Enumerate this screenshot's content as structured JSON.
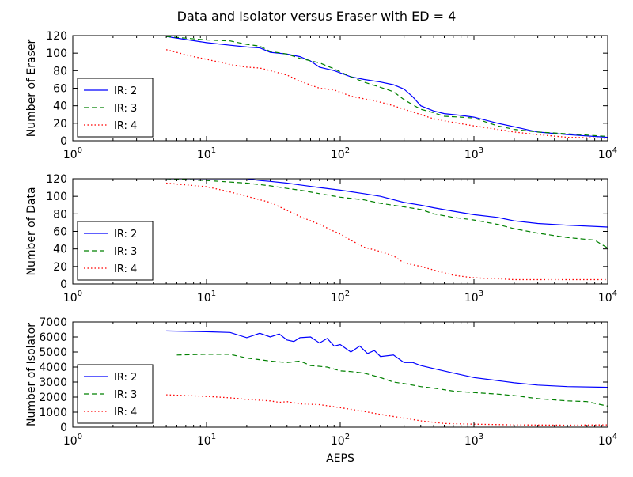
{
  "figure": {
    "title": "Data and Isolator versus Eraser with ED = 4"
  },
  "chart_data": [
    {
      "type": "line",
      "title": "Data and Isolator versus Eraser with ED = 4",
      "xlabel": "",
      "ylabel": "Number of Eraser",
      "xscale": "log",
      "xlim": [
        1,
        10000
      ],
      "ylim": [
        0,
        120
      ],
      "x_ticks": [
        {
          "value": 1,
          "base": "10",
          "exp": "0"
        },
        {
          "value": 10,
          "base": "10",
          "exp": "1"
        },
        {
          "value": 100,
          "base": "10",
          "exp": "2"
        },
        {
          "value": 1000,
          "base": "10",
          "exp": "3"
        },
        {
          "value": 10000,
          "base": "10",
          "exp": "4"
        }
      ],
      "y_ticks": [
        0,
        20,
        40,
        60,
        80,
        100,
        120
      ],
      "legend_position": "lower-left",
      "series": [
        {
          "name": "IR: 2",
          "color": "#0000ff",
          "dash": "solid",
          "points": [
            [
              5,
              119
            ],
            [
              10,
              112
            ],
            [
              15,
              109
            ],
            [
              20,
              107
            ],
            [
              25,
              106
            ],
            [
              30,
              101
            ],
            [
              40,
              99
            ],
            [
              50,
              96
            ],
            [
              60,
              91
            ],
            [
              70,
              84
            ],
            [
              90,
              80
            ],
            [
              120,
              73
            ],
            [
              150,
              70
            ],
            [
              200,
              67
            ],
            [
              250,
              64
            ],
            [
              300,
              59
            ],
            [
              350,
              50
            ],
            [
              400,
              40
            ],
            [
              500,
              34
            ],
            [
              600,
              31
            ],
            [
              800,
              29
            ],
            [
              1000,
              27
            ],
            [
              1500,
              20
            ],
            [
              2000,
              16
            ],
            [
              3000,
              10
            ],
            [
              5000,
              7
            ],
            [
              10000,
              4
            ]
          ]
        },
        {
          "name": "IR: 3",
          "color": "#008000",
          "dash": "dashed",
          "points": [
            [
              5,
              119
            ],
            [
              10,
              115
            ],
            [
              15,
              114
            ],
            [
              20,
              110
            ],
            [
              25,
              108
            ],
            [
              30,
              102
            ],
            [
              40,
              99
            ],
            [
              50,
              94
            ],
            [
              70,
              89
            ],
            [
              90,
              82
            ],
            [
              120,
              73
            ],
            [
              150,
              67
            ],
            [
              200,
              61
            ],
            [
              250,
              56
            ],
            [
              300,
              47
            ],
            [
              350,
              41
            ],
            [
              400,
              36
            ],
            [
              500,
              32
            ],
            [
              600,
              28
            ],
            [
              800,
              27
            ],
            [
              1000,
              26
            ],
            [
              1500,
              17
            ],
            [
              2000,
              13
            ],
            [
              3000,
              10
            ],
            [
              5000,
              8
            ],
            [
              10000,
              5
            ]
          ]
        },
        {
          "name": "IR: 4",
          "color": "#ff0000",
          "dash": "dotted",
          "points": [
            [
              5,
              104
            ],
            [
              8,
              96
            ],
            [
              10,
              93
            ],
            [
              15,
              87
            ],
            [
              20,
              84
            ],
            [
              25,
              83
            ],
            [
              30,
              80
            ],
            [
              40,
              75
            ],
            [
              50,
              68
            ],
            [
              70,
              60
            ],
            [
              90,
              58
            ],
            [
              120,
              51
            ],
            [
              150,
              48
            ],
            [
              200,
              44
            ],
            [
              250,
              40
            ],
            [
              300,
              36
            ],
            [
              400,
              30
            ],
            [
              500,
              25
            ],
            [
              700,
              21
            ],
            [
              1000,
              17
            ],
            [
              1500,
              13
            ],
            [
              2000,
              10
            ],
            [
              3000,
              7
            ],
            [
              5000,
              4
            ],
            [
              10000,
              3
            ]
          ]
        }
      ]
    },
    {
      "type": "line",
      "title": "",
      "xlabel": "",
      "ylabel": "Number of Data",
      "xscale": "log",
      "xlim": [
        1,
        10000
      ],
      "ylim": [
        0,
        120
      ],
      "x_ticks": [
        {
          "value": 1,
          "base": "10",
          "exp": "0"
        },
        {
          "value": 10,
          "base": "10",
          "exp": "1"
        },
        {
          "value": 100,
          "base": "10",
          "exp": "2"
        },
        {
          "value": 1000,
          "base": "10",
          "exp": "3"
        },
        {
          "value": 10000,
          "base": "10",
          "exp": "4"
        }
      ],
      "y_ticks": [
        0,
        20,
        40,
        60,
        80,
        100,
        120
      ],
      "legend_position": "lower-left",
      "series": [
        {
          "name": "IR: 2",
          "color": "#0000ff",
          "dash": "solid",
          "points": [
            [
              5,
              120
            ],
            [
              10,
              120
            ],
            [
              20,
              120
            ],
            [
              25,
              118
            ],
            [
              30,
              117
            ],
            [
              40,
              115
            ],
            [
              50,
              113
            ],
            [
              70,
              110
            ],
            [
              100,
              107
            ],
            [
              150,
              103
            ],
            [
              200,
              100
            ],
            [
              300,
              93
            ],
            [
              400,
              90
            ],
            [
              500,
              87
            ],
            [
              700,
              83
            ],
            [
              1000,
              79
            ],
            [
              1500,
              76
            ],
            [
              2000,
              72
            ],
            [
              3000,
              69
            ],
            [
              5000,
              67
            ],
            [
              10000,
              65
            ]
          ]
        },
        {
          "name": "IR: 3",
          "color": "#008000",
          "dash": "dashed",
          "points": [
            [
              5,
              120
            ],
            [
              10,
              118
            ],
            [
              20,
              115
            ],
            [
              30,
              112
            ],
            [
              40,
              109
            ],
            [
              50,
              107
            ],
            [
              70,
              103
            ],
            [
              100,
              99
            ],
            [
              150,
              96
            ],
            [
              200,
              92
            ],
            [
              300,
              88
            ],
            [
              400,
              85
            ],
            [
              500,
              80
            ],
            [
              700,
              76
            ],
            [
              1000,
              73
            ],
            [
              1500,
              68
            ],
            [
              2000,
              63
            ],
            [
              3000,
              58
            ],
            [
              5000,
              53
            ],
            [
              8000,
              50
            ],
            [
              10000,
              41
            ]
          ]
        },
        {
          "name": "IR: 4",
          "color": "#ff0000",
          "dash": "dotted",
          "points": [
            [
              5,
              115
            ],
            [
              10,
              111
            ],
            [
              15,
              105
            ],
            [
              20,
              100
            ],
            [
              30,
              93
            ],
            [
              40,
              84
            ],
            [
              50,
              77
            ],
            [
              70,
              68
            ],
            [
              90,
              60
            ],
            [
              100,
              57
            ],
            [
              120,
              50
            ],
            [
              150,
              42
            ],
            [
              200,
              37
            ],
            [
              250,
              32
            ],
            [
              300,
              24
            ],
            [
              400,
              20
            ],
            [
              500,
              16
            ],
            [
              700,
              10
            ],
            [
              1000,
              7
            ],
            [
              1500,
              6
            ],
            [
              2000,
              5
            ],
            [
              5000,
              5
            ],
            [
              10000,
              5
            ]
          ]
        }
      ]
    },
    {
      "type": "line",
      "title": "",
      "xlabel": "AEPS",
      "ylabel": "Number of Isolator",
      "xscale": "log",
      "xlim": [
        1,
        10000
      ],
      "ylim": [
        0,
        7000
      ],
      "x_ticks": [
        {
          "value": 1,
          "base": "10",
          "exp": "0"
        },
        {
          "value": 10,
          "base": "10",
          "exp": "1"
        },
        {
          "value": 100,
          "base": "10",
          "exp": "2"
        },
        {
          "value": 1000,
          "base": "10",
          "exp": "3"
        },
        {
          "value": 10000,
          "base": "10",
          "exp": "4"
        }
      ],
      "y_ticks": [
        0,
        1000,
        2000,
        3000,
        4000,
        5000,
        6000,
        7000
      ],
      "legend_position": "lower-left",
      "series": [
        {
          "name": "IR: 2",
          "color": "#0000ff",
          "dash": "solid",
          "points": [
            [
              5,
              6400
            ],
            [
              10,
              6350
            ],
            [
              15,
              6300
            ],
            [
              20,
              5950
            ],
            [
              25,
              6250
            ],
            [
              30,
              6000
            ],
            [
              35,
              6200
            ],
            [
              40,
              5800
            ],
            [
              45,
              5700
            ],
            [
              50,
              5950
            ],
            [
              60,
              6000
            ],
            [
              70,
              5600
            ],
            [
              80,
              5900
            ],
            [
              90,
              5400
            ],
            [
              100,
              5500
            ],
            [
              120,
              5000
            ],
            [
              140,
              5400
            ],
            [
              160,
              4900
            ],
            [
              180,
              5100
            ],
            [
              200,
              4700
            ],
            [
              250,
              4800
            ],
            [
              300,
              4300
            ],
            [
              350,
              4300
            ],
            [
              400,
              4100
            ],
            [
              500,
              3900
            ],
            [
              700,
              3600
            ],
            [
              1000,
              3300
            ],
            [
              1500,
              3100
            ],
            [
              2000,
              2950
            ],
            [
              3000,
              2800
            ],
            [
              5000,
              2700
            ],
            [
              10000,
              2650
            ]
          ]
        },
        {
          "name": "IR: 3",
          "color": "#008000",
          "dash": "dashed",
          "points": [
            [
              6,
              4800
            ],
            [
              10,
              4850
            ],
            [
              15,
              4850
            ],
            [
              20,
              4600
            ],
            [
              30,
              4400
            ],
            [
              40,
              4300
            ],
            [
              50,
              4400
            ],
            [
              60,
              4100
            ],
            [
              80,
              4000
            ],
            [
              100,
              3750
            ],
            [
              120,
              3700
            ],
            [
              150,
              3600
            ],
            [
              200,
              3300
            ],
            [
              250,
              3000
            ],
            [
              300,
              2900
            ],
            [
              400,
              2700
            ],
            [
              500,
              2600
            ],
            [
              700,
              2400
            ],
            [
              1000,
              2300
            ],
            [
              1500,
              2200
            ],
            [
              2000,
              2100
            ],
            [
              3000,
              1900
            ],
            [
              5000,
              1750
            ],
            [
              7000,
              1700
            ],
            [
              10000,
              1400
            ]
          ]
        },
        {
          "name": "IR: 4",
          "color": "#ff0000",
          "dash": "dotted",
          "points": [
            [
              5,
              2150
            ],
            [
              10,
              2050
            ],
            [
              15,
              1950
            ],
            [
              20,
              1850
            ],
            [
              30,
              1750
            ],
            [
              35,
              1650
            ],
            [
              40,
              1700
            ],
            [
              50,
              1550
            ],
            [
              70,
              1500
            ],
            [
              100,
              1300
            ],
            [
              150,
              1050
            ],
            [
              200,
              850
            ],
            [
              300,
              600
            ],
            [
              400,
              420
            ],
            [
              600,
              250
            ],
            [
              1000,
              200
            ],
            [
              2000,
              150
            ],
            [
              5000,
              130
            ],
            [
              10000,
              150
            ]
          ]
        }
      ]
    }
  ]
}
